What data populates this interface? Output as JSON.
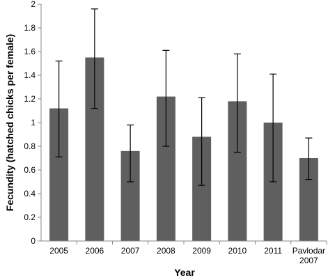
{
  "chart_data": {
    "type": "bar",
    "categories": [
      [
        "2005"
      ],
      [
        "2006"
      ],
      [
        "2007"
      ],
      [
        "2008"
      ],
      [
        "2009"
      ],
      [
        "2010"
      ],
      [
        "2011"
      ],
      [
        "Pavlodar",
        "2007"
      ]
    ],
    "values": [
      1.12,
      1.55,
      0.76,
      1.22,
      0.88,
      1.18,
      1.0,
      0.7
    ],
    "error_low": [
      0.71,
      1.12,
      0.5,
      0.8,
      0.47,
      0.75,
      0.5,
      0.52
    ],
    "error_high": [
      1.52,
      1.96,
      0.98,
      1.61,
      1.21,
      1.58,
      1.41,
      0.87
    ],
    "xlabel": "Year",
    "ylabel": "Fecundity (hatched chicks per female)",
    "ylim": [
      0,
      2
    ],
    "yticks": [
      "0",
      "0.2",
      "0.4",
      "0.6",
      "0.8",
      "1",
      "1.2",
      "1.4",
      "1.6",
      "1.8",
      "2"
    ],
    "grid": false,
    "bar_color": "#5f5f5f",
    "axis_color": "#888888",
    "error_bar_color": "#000000"
  }
}
